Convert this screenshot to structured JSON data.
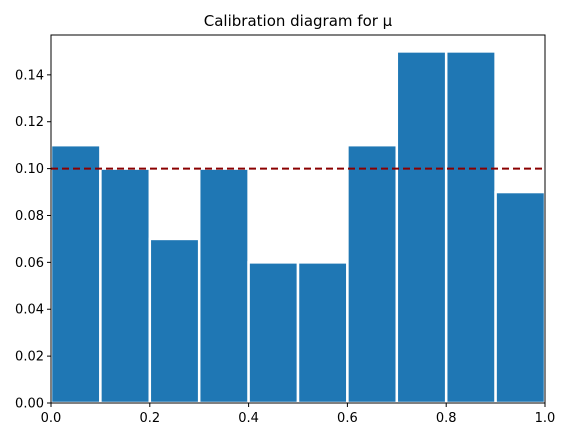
{
  "chart_data": {
    "type": "bar",
    "title": "Calibration diagram for μ",
    "xlabel": "",
    "ylabel": "",
    "bin_edges": [
      0.0,
      0.1,
      0.2,
      0.3,
      0.4,
      0.5,
      0.6,
      0.7,
      0.8,
      0.9,
      1.0
    ],
    "values": [
      0.11,
      0.1,
      0.07,
      0.1,
      0.06,
      0.06,
      0.11,
      0.15,
      0.15,
      0.09
    ],
    "xlim": [
      0.0,
      1.0
    ],
    "ylim": [
      0.0,
      0.157
    ],
    "xticks": [
      "0.0",
      "0.2",
      "0.4",
      "0.6",
      "0.8",
      "1.0"
    ],
    "yticks": [
      "0.00",
      "0.02",
      "0.04",
      "0.06",
      "0.08",
      "0.10",
      "0.12",
      "0.14"
    ],
    "reference_line": {
      "y": 0.1,
      "style": "dashed"
    },
    "grid": false,
    "colors": {
      "bar": "#1f77b4",
      "bar_edge": "#ffffff",
      "reference_line": "#8b0000",
      "axes": "#000000"
    }
  }
}
